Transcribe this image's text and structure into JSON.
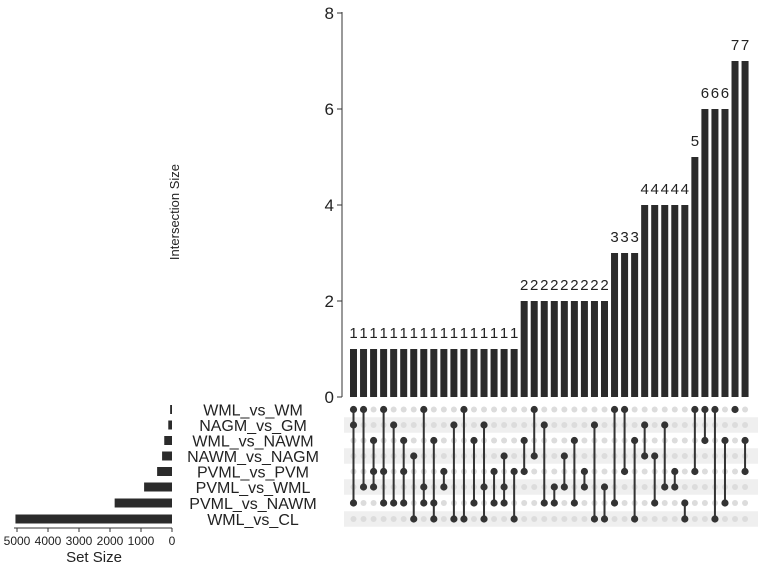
{
  "chart_data": {
    "type": "upset",
    "y_axis_label": "Intersection Size",
    "y_ticks": [
      "0",
      "2",
      "4",
      "6",
      "8"
    ],
    "ylim": [
      0,
      8
    ],
    "set_size_label": "Set Size",
    "set_size_ticks": [
      "5000",
      "4000",
      "3000",
      "2000",
      "1000",
      "0"
    ],
    "set_size_max": 5000,
    "sets": [
      {
        "name": "WML_vs_WM",
        "size": 60
      },
      {
        "name": "NAGM_vs_GM",
        "size": 120
      },
      {
        "name": "WML_vs_NAWM",
        "size": 250
      },
      {
        "name": "NAWM_vs_NAGM",
        "size": 320
      },
      {
        "name": "PVML_vs_PVM",
        "size": 480
      },
      {
        "name": "PVML_vs_WML",
        "size": 900
      },
      {
        "name": "PVML_vs_NAWM",
        "size": 1850
      },
      {
        "name": "WML_vs_CL",
        "size": 5050
      }
    ],
    "intersections": [
      {
        "value": 1,
        "label": "1",
        "members": [
          0,
          1,
          6
        ]
      },
      {
        "value": 1,
        "label": "1",
        "members": [
          0,
          5
        ]
      },
      {
        "value": 1,
        "label": "1",
        "members": [
          2,
          4,
          5
        ]
      },
      {
        "value": 1,
        "label": "1",
        "members": [
          0,
          4,
          6
        ]
      },
      {
        "value": 1,
        "label": "1",
        "members": [
          1,
          6
        ]
      },
      {
        "value": 1,
        "label": "1",
        "members": [
          2,
          4,
          6
        ]
      },
      {
        "value": 1,
        "label": "1",
        "members": [
          3,
          7
        ]
      },
      {
        "value": 1,
        "label": "1",
        "members": [
          0,
          5,
          6
        ]
      },
      {
        "value": 1,
        "label": "1",
        "members": [
          2,
          6,
          7
        ]
      },
      {
        "value": 1,
        "label": "1",
        "members": [
          4,
          5
        ]
      },
      {
        "value": 1,
        "label": "1",
        "members": [
          1,
          7
        ]
      },
      {
        "value": 1,
        "label": "1",
        "members": [
          0,
          7
        ]
      },
      {
        "value": 1,
        "label": "1",
        "members": [
          2,
          6
        ]
      },
      {
        "value": 1,
        "label": "1",
        "members": [
          1,
          5,
          7
        ]
      },
      {
        "value": 1,
        "label": "1",
        "members": [
          4,
          6
        ]
      },
      {
        "value": 1,
        "label": "1",
        "members": [
          3,
          5,
          6
        ]
      },
      {
        "value": 1,
        "label": "1",
        "members": [
          4,
          7
        ]
      },
      {
        "value": 2,
        "label": "2",
        "members": [
          2,
          4
        ]
      },
      {
        "value": 2,
        "label": "2",
        "members": [
          0,
          3
        ]
      },
      {
        "value": 2,
        "label": "2",
        "members": [
          1,
          6
        ]
      },
      {
        "value": 2,
        "label": "2",
        "members": [
          5,
          6
        ]
      },
      {
        "value": 2,
        "label": "2",
        "members": [
          3,
          5
        ]
      },
      {
        "value": 2,
        "label": "2",
        "members": [
          2,
          6
        ]
      },
      {
        "value": 2,
        "label": "2",
        "members": [
          4,
          5
        ]
      },
      {
        "value": 2,
        "label": "2",
        "members": [
          1,
          7
        ]
      },
      {
        "value": 2,
        "label": "2",
        "members": [
          5,
          7
        ]
      },
      {
        "value": 3,
        "label": "3",
        "members": [
          0,
          6
        ]
      },
      {
        "value": 3,
        "label": "3",
        "members": [
          0,
          4
        ]
      },
      {
        "value": 3,
        "label": "3",
        "members": [
          2,
          7
        ]
      },
      {
        "value": 4,
        "label": "4",
        "members": [
          1,
          3
        ]
      },
      {
        "value": 4,
        "label": "4",
        "members": [
          3,
          6
        ]
      },
      {
        "value": 4,
        "label": "4",
        "members": [
          1,
          5
        ]
      },
      {
        "value": 4,
        "label": "4",
        "members": [
          4,
          5
        ]
      },
      {
        "value": 4,
        "label": "4",
        "members": [
          6,
          7
        ]
      },
      {
        "value": 5,
        "label": "5",
        "members": [
          0,
          4
        ]
      },
      {
        "value": 6,
        "label": "6",
        "members": [
          0,
          2
        ]
      },
      {
        "value": 6,
        "label": "6",
        "members": [
          0,
          7
        ]
      },
      {
        "value": 6,
        "label": "6",
        "members": [
          2,
          6
        ]
      },
      {
        "value": 7,
        "label": "7",
        "members": [
          0
        ]
      },
      {
        "value": 7,
        "label": "7",
        "members": [
          2,
          4
        ]
      }
    ],
    "colors": {
      "bar": "#2b2b2b",
      "dot_active": "#333333",
      "dot_inactive": "#dcdcdc",
      "stripe": "#efefef",
      "axis": "#333333",
      "text": "#222222"
    }
  }
}
